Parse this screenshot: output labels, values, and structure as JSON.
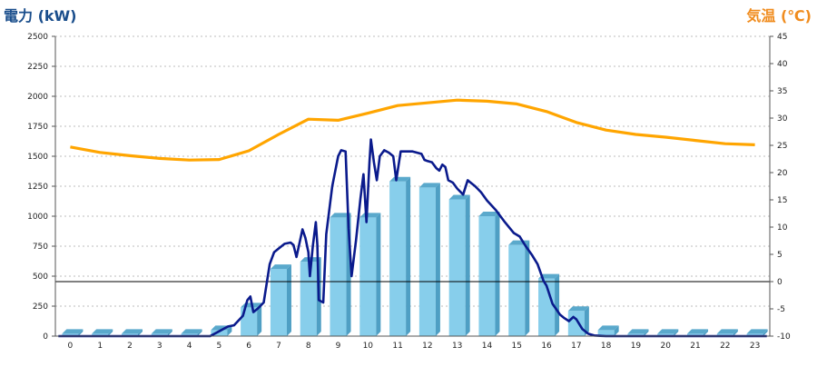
{
  "chart_data": {
    "type": "bar+line",
    "left_axis": {
      "title": "電力 (kW)",
      "color": "#1a4e8c",
      "min": 0,
      "max": 2500,
      "step": 250
    },
    "right_axis": {
      "title": "気温 (℃)",
      "color": "#f08c1e",
      "min": -10,
      "max": 45,
      "step": 5
    },
    "categories": [
      "0",
      "1",
      "2",
      "3",
      "4",
      "5",
      "6",
      "7",
      "8",
      "9",
      "10",
      "11",
      "12",
      "13",
      "14",
      "15",
      "16",
      "17",
      "18",
      "19",
      "20",
      "21",
      "22",
      "23"
    ],
    "bar_series": {
      "axis": "left",
      "color": "#87ceeb",
      "values": [
        20,
        20,
        20,
        20,
        20,
        50,
        240,
        560,
        620,
        990,
        990,
        1290,
        1240,
        1140,
        1000,
        760,
        480,
        210,
        50,
        20,
        20,
        20,
        20,
        20
      ]
    },
    "power_line": {
      "axis": "left",
      "color": "#0a1a8c",
      "points": [
        [
          -0.4,
          0
        ],
        [
          4.7,
          0
        ],
        [
          5.0,
          40
        ],
        [
          5.3,
          80
        ],
        [
          5.5,
          90
        ],
        [
          5.8,
          170
        ],
        [
          5.95,
          300
        ],
        [
          6.05,
          330
        ],
        [
          6.15,
          200
        ],
        [
          6.3,
          230
        ],
        [
          6.5,
          280
        ],
        [
          6.7,
          600
        ],
        [
          6.85,
          700
        ],
        [
          7.0,
          730
        ],
        [
          7.2,
          770
        ],
        [
          7.4,
          780
        ],
        [
          7.5,
          760
        ],
        [
          7.6,
          660
        ],
        [
          7.8,
          890
        ],
        [
          7.9,
          820
        ],
        [
          8.0,
          700
        ],
        [
          8.05,
          500
        ],
        [
          8.15,
          750
        ],
        [
          8.25,
          950
        ],
        [
          8.3,
          760
        ],
        [
          8.35,
          300
        ],
        [
          8.5,
          280
        ],
        [
          8.6,
          850
        ],
        [
          8.8,
          1250
        ],
        [
          9.0,
          1500
        ],
        [
          9.1,
          1550
        ],
        [
          9.25,
          1540
        ],
        [
          9.35,
          900
        ],
        [
          9.45,
          500
        ],
        [
          9.6,
          800
        ],
        [
          9.75,
          1150
        ],
        [
          9.85,
          1350
        ],
        [
          9.95,
          950
        ],
        [
          10.05,
          1450
        ],
        [
          10.1,
          1640
        ],
        [
          10.2,
          1450
        ],
        [
          10.3,
          1300
        ],
        [
          10.4,
          1500
        ],
        [
          10.55,
          1550
        ],
        [
          10.7,
          1530
        ],
        [
          10.85,
          1500
        ],
        [
          10.95,
          1300
        ],
        [
          11.1,
          1540
        ],
        [
          11.5,
          1540
        ],
        [
          11.8,
          1520
        ],
        [
          11.9,
          1470
        ],
        [
          12.0,
          1460
        ],
        [
          12.15,
          1450
        ],
        [
          12.3,
          1400
        ],
        [
          12.4,
          1380
        ],
        [
          12.5,
          1430
        ],
        [
          12.6,
          1410
        ],
        [
          12.7,
          1300
        ],
        [
          12.85,
          1280
        ],
        [
          13.0,
          1230
        ],
        [
          13.2,
          1180
        ],
        [
          13.35,
          1300
        ],
        [
          13.45,
          1280
        ],
        [
          13.6,
          1250
        ],
        [
          13.8,
          1200
        ],
        [
          14.0,
          1130
        ],
        [
          14.3,
          1050
        ],
        [
          14.6,
          950
        ],
        [
          14.9,
          860
        ],
        [
          15.1,
          830
        ],
        [
          15.3,
          750
        ],
        [
          15.5,
          680
        ],
        [
          15.7,
          600
        ],
        [
          15.9,
          460
        ],
        [
          16.0,
          420
        ],
        [
          16.2,
          270
        ],
        [
          16.45,
          180
        ],
        [
          16.6,
          150
        ],
        [
          16.75,
          125
        ],
        [
          16.9,
          160
        ],
        [
          17.0,
          140
        ],
        [
          17.2,
          60
        ],
        [
          17.4,
          20
        ],
        [
          17.6,
          5
        ],
        [
          17.8,
          2
        ],
        [
          18.0,
          0
        ],
        [
          23.4,
          0
        ]
      ]
    },
    "temp_line": {
      "axis": "right",
      "color": "#ffa500",
      "points": [
        [
          0,
          24.7
        ],
        [
          1,
          23.7
        ],
        [
          2,
          23.1
        ],
        [
          3,
          22.6
        ],
        [
          4,
          22.3
        ],
        [
          5,
          22.4
        ],
        [
          6,
          24.0
        ],
        [
          7,
          27.0
        ],
        [
          8,
          29.8
        ],
        [
          9,
          29.6
        ],
        [
          10,
          30.9
        ],
        [
          11,
          32.3
        ],
        [
          12,
          32.8
        ],
        [
          13,
          33.3
        ],
        [
          14,
          33.1
        ],
        [
          15,
          32.6
        ],
        [
          16,
          31.2
        ],
        [
          17,
          29.2
        ],
        [
          18,
          27.8
        ],
        [
          19,
          27.0
        ],
        [
          20,
          26.5
        ],
        [
          21,
          25.9
        ],
        [
          22,
          25.3
        ],
        [
          23,
          25.1
        ]
      ]
    },
    "reference_line": {
      "axis": "right",
      "value": 0,
      "color": "#000000"
    },
    "grid": {
      "horizontal": true,
      "vertical": false,
      "style": "dotted"
    },
    "legend": "none"
  }
}
